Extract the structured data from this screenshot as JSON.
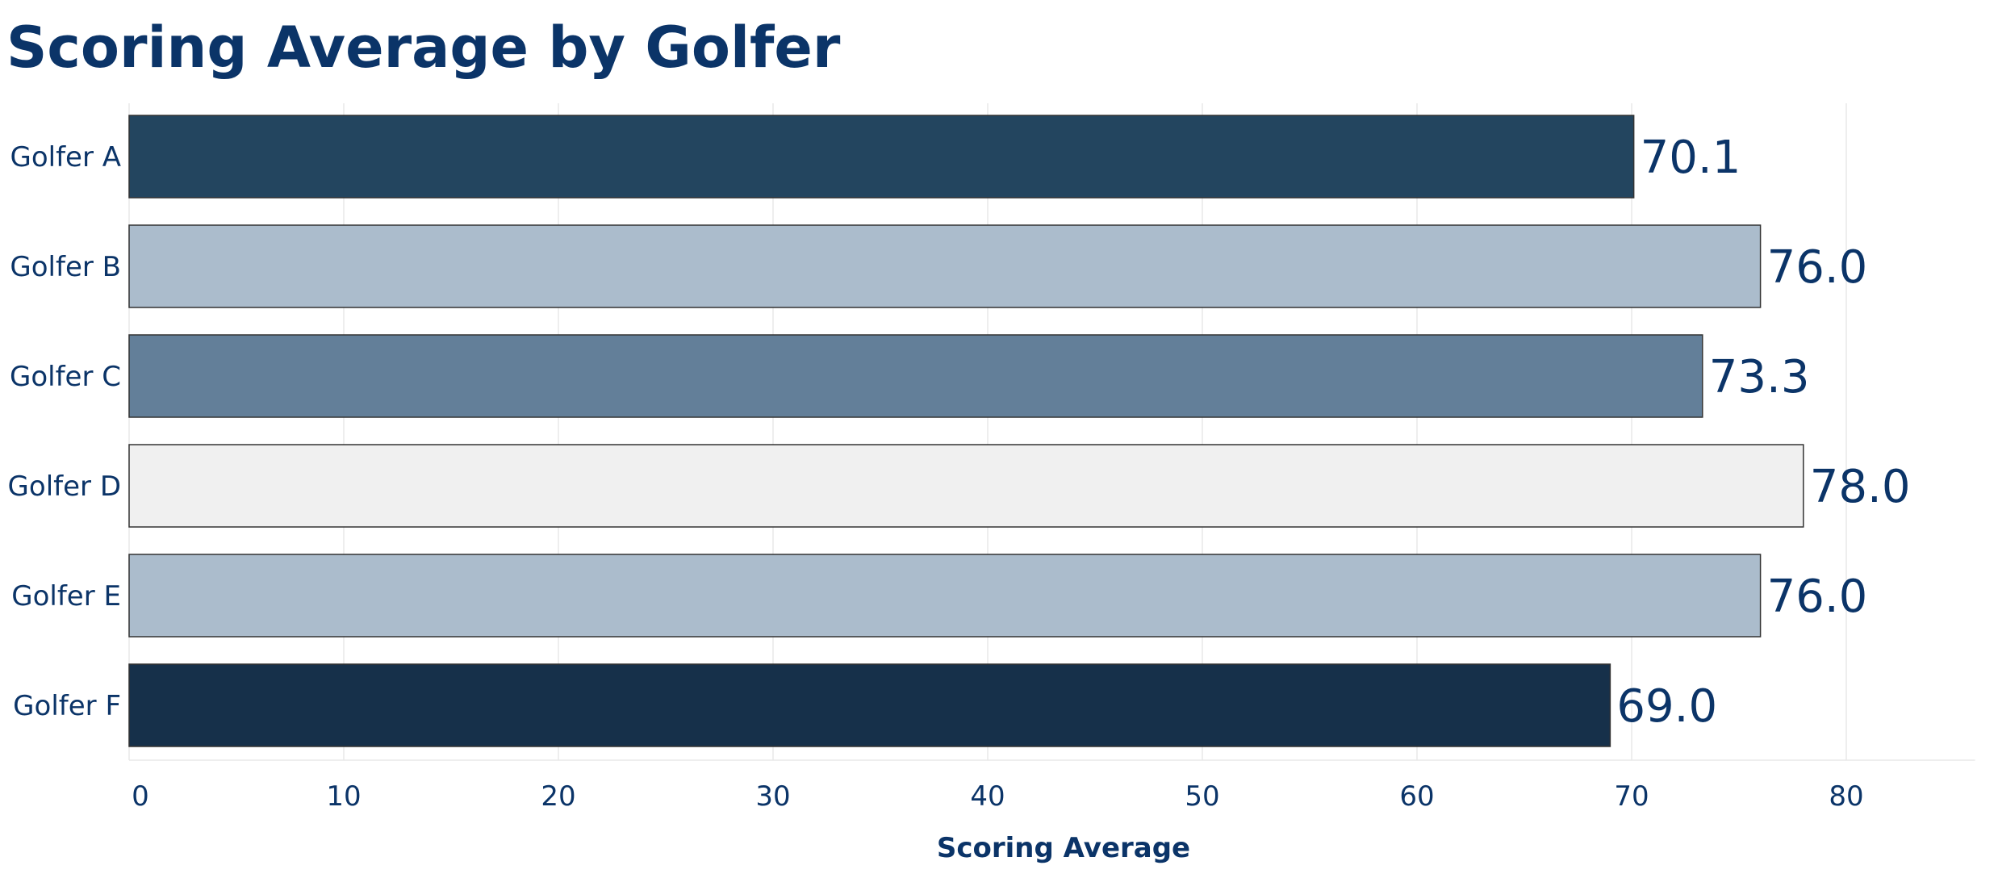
{
  "chart_data": {
    "type": "bar",
    "orientation": "horizontal",
    "title": "Scoring Average by Golfer",
    "xlabel": "Scoring Average",
    "ylabel": "",
    "categories": [
      "Golfer A",
      "Golfer B",
      "Golfer C",
      "Golfer D",
      "Golfer E",
      "Golfer F"
    ],
    "values": [
      70.1,
      76.0,
      73.3,
      78.0,
      76.0,
      69.0
    ],
    "data_labels": [
      "70.1",
      "76.0",
      "73.3",
      "78.0",
      "76.0",
      "69.0"
    ],
    "bar_colors": [
      "#23455f",
      "#abbccc",
      "#637f99",
      "#f0f0f0",
      "#abbccc",
      "#16304a"
    ],
    "xlim": [
      0,
      86
    ],
    "xticks": [
      0,
      10,
      20,
      30,
      40,
      50,
      60,
      70,
      80
    ],
    "grid": true,
    "legend": "none",
    "colors": {
      "text": "#0b3468",
      "grid": "#e8e8e8",
      "bar_border": "#333333"
    }
  }
}
